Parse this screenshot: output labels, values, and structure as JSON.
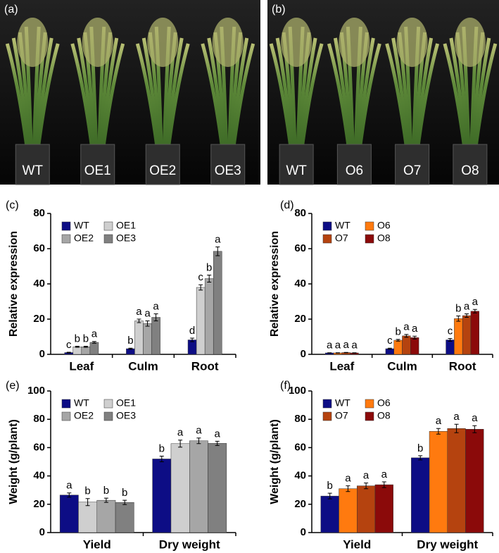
{
  "photos": [
    {
      "panel_label": "(a)",
      "labels": [
        "WT",
        "OE1",
        "OE2",
        "OE3"
      ]
    },
    {
      "panel_label": "(b)",
      "labels": [
        "WT",
        "O6",
        "O7",
        "O8"
      ]
    }
  ],
  "chart_data": [
    {
      "type": "bar",
      "panel_label": "(c)",
      "y_label": "Relative expression",
      "categories": [
        "Leaf",
        "Culm",
        "Root"
      ],
      "ylim": [
        0,
        80
      ],
      "yticks": [
        0,
        20,
        40,
        60,
        80
      ],
      "grid": false,
      "legend": "upper left",
      "series": [
        {
          "name": "WT",
          "color": "#0d0d85",
          "values": [
            1.0,
            3.2,
            8.2
          ],
          "errors": [
            0.2,
            0.3,
            1.0
          ],
          "annotations": [
            "c",
            "b",
            "d"
          ]
        },
        {
          "name": "OE1",
          "color": "#cfcfcf",
          "values": [
            4.3,
            19.0,
            38.0
          ],
          "errors": [
            0.3,
            1.0,
            1.5
          ],
          "annotations": [
            "b",
            "a",
            "c"
          ]
        },
        {
          "name": "OE2",
          "color": "#a6a6a6",
          "values": [
            4.3,
            17.5,
            43.0
          ],
          "errors": [
            0.3,
            1.5,
            2.0
          ],
          "annotations": [
            "b",
            "a",
            "b"
          ]
        },
        {
          "name": "OE3",
          "color": "#808080",
          "values": [
            6.8,
            21.0,
            58.5
          ],
          "errors": [
            0.5,
            2.0,
            2.5
          ],
          "annotations": [
            "a",
            "a",
            "a"
          ]
        }
      ]
    },
    {
      "type": "bar",
      "panel_label": "(d)",
      "y_label": "Relative expression",
      "categories": [
        "Leaf",
        "Culm",
        "Root"
      ],
      "ylim": [
        0,
        80
      ],
      "yticks": [
        0,
        20,
        40,
        60,
        80
      ],
      "grid": false,
      "legend": "upper left",
      "series": [
        {
          "name": "WT",
          "color": "#0d0d85",
          "values": [
            0.8,
            3.2,
            8.2
          ],
          "errors": [
            0.1,
            0.3,
            0.8
          ],
          "annotations": [
            "a",
            "c",
            "c"
          ]
        },
        {
          "name": "O6",
          "color": "#ff7a0f",
          "values": [
            0.8,
            8.0,
            20.3
          ],
          "errors": [
            0.1,
            0.5,
            1.5
          ],
          "annotations": [
            "a",
            "b",
            "b"
          ]
        },
        {
          "name": "O7",
          "color": "#b5430f",
          "values": [
            1.0,
            10.5,
            22.0
          ],
          "errors": [
            0.1,
            0.8,
            1.0
          ],
          "annotations": [
            "a",
            "a",
            "a"
          ]
        },
        {
          "name": "O8",
          "color": "#8b0a0a",
          "values": [
            0.8,
            9.5,
            24.5
          ],
          "errors": [
            0.1,
            0.8,
            1.0
          ],
          "annotations": [
            "a",
            "a",
            "a"
          ]
        }
      ]
    },
    {
      "type": "bar",
      "panel_label": "(e)",
      "y_label": "Weight (g/plant)",
      "categories": [
        "Yield",
        "Dry weight"
      ],
      "ylim": [
        0,
        100
      ],
      "yticks": [
        0,
        20,
        40,
        60,
        80,
        100
      ],
      "grid": false,
      "legend": "upper left",
      "series": [
        {
          "name": "WT",
          "color": "#0d0d85",
          "values": [
            26.5,
            52.0
          ],
          "errors": [
            1.5,
            2.0
          ],
          "annotations": [
            "a",
            "b"
          ]
        },
        {
          "name": "OE1",
          "color": "#cfcfcf",
          "values": [
            21.5,
            62.8
          ],
          "errors": [
            2.5,
            2.5
          ],
          "annotations": [
            "b",
            "a"
          ]
        },
        {
          "name": "OE2",
          "color": "#a6a6a6",
          "values": [
            22.8,
            64.8
          ],
          "errors": [
            1.5,
            2.0
          ],
          "annotations": [
            "b",
            "a"
          ]
        },
        {
          "name": "OE3",
          "color": "#808080",
          "values": [
            21.3,
            63.0
          ],
          "errors": [
            1.5,
            1.5
          ],
          "annotations": [
            "b",
            "a"
          ]
        }
      ]
    },
    {
      "type": "bar",
      "panel_label": "(f)",
      "y_label": "Weight (g/plant)",
      "categories": [
        "Yield",
        "Dry weight"
      ],
      "ylim": [
        0,
        100
      ],
      "yticks": [
        0,
        20,
        40,
        60,
        80,
        100
      ],
      "grid": false,
      "legend": "upper left",
      "series": [
        {
          "name": "WT",
          "color": "#0d0d85",
          "values": [
            25.8,
            52.8
          ],
          "errors": [
            2.0,
            1.5
          ],
          "annotations": [
            "b",
            "b"
          ]
        },
        {
          "name": "O6",
          "color": "#ff7a0f",
          "values": [
            31.0,
            71.5
          ],
          "errors": [
            2.0,
            2.0
          ],
          "annotations": [
            "a",
            "a"
          ]
        },
        {
          "name": "O7",
          "color": "#b5430f",
          "values": [
            33.0,
            73.5
          ],
          "errors": [
            2.0,
            3.0
          ],
          "annotations": [
            "a",
            "a"
          ]
        },
        {
          "name": "O8",
          "color": "#8b0a0a",
          "values": [
            33.8,
            73.0
          ],
          "errors": [
            2.0,
            2.5
          ],
          "annotations": [
            "a",
            "a"
          ]
        }
      ]
    }
  ]
}
